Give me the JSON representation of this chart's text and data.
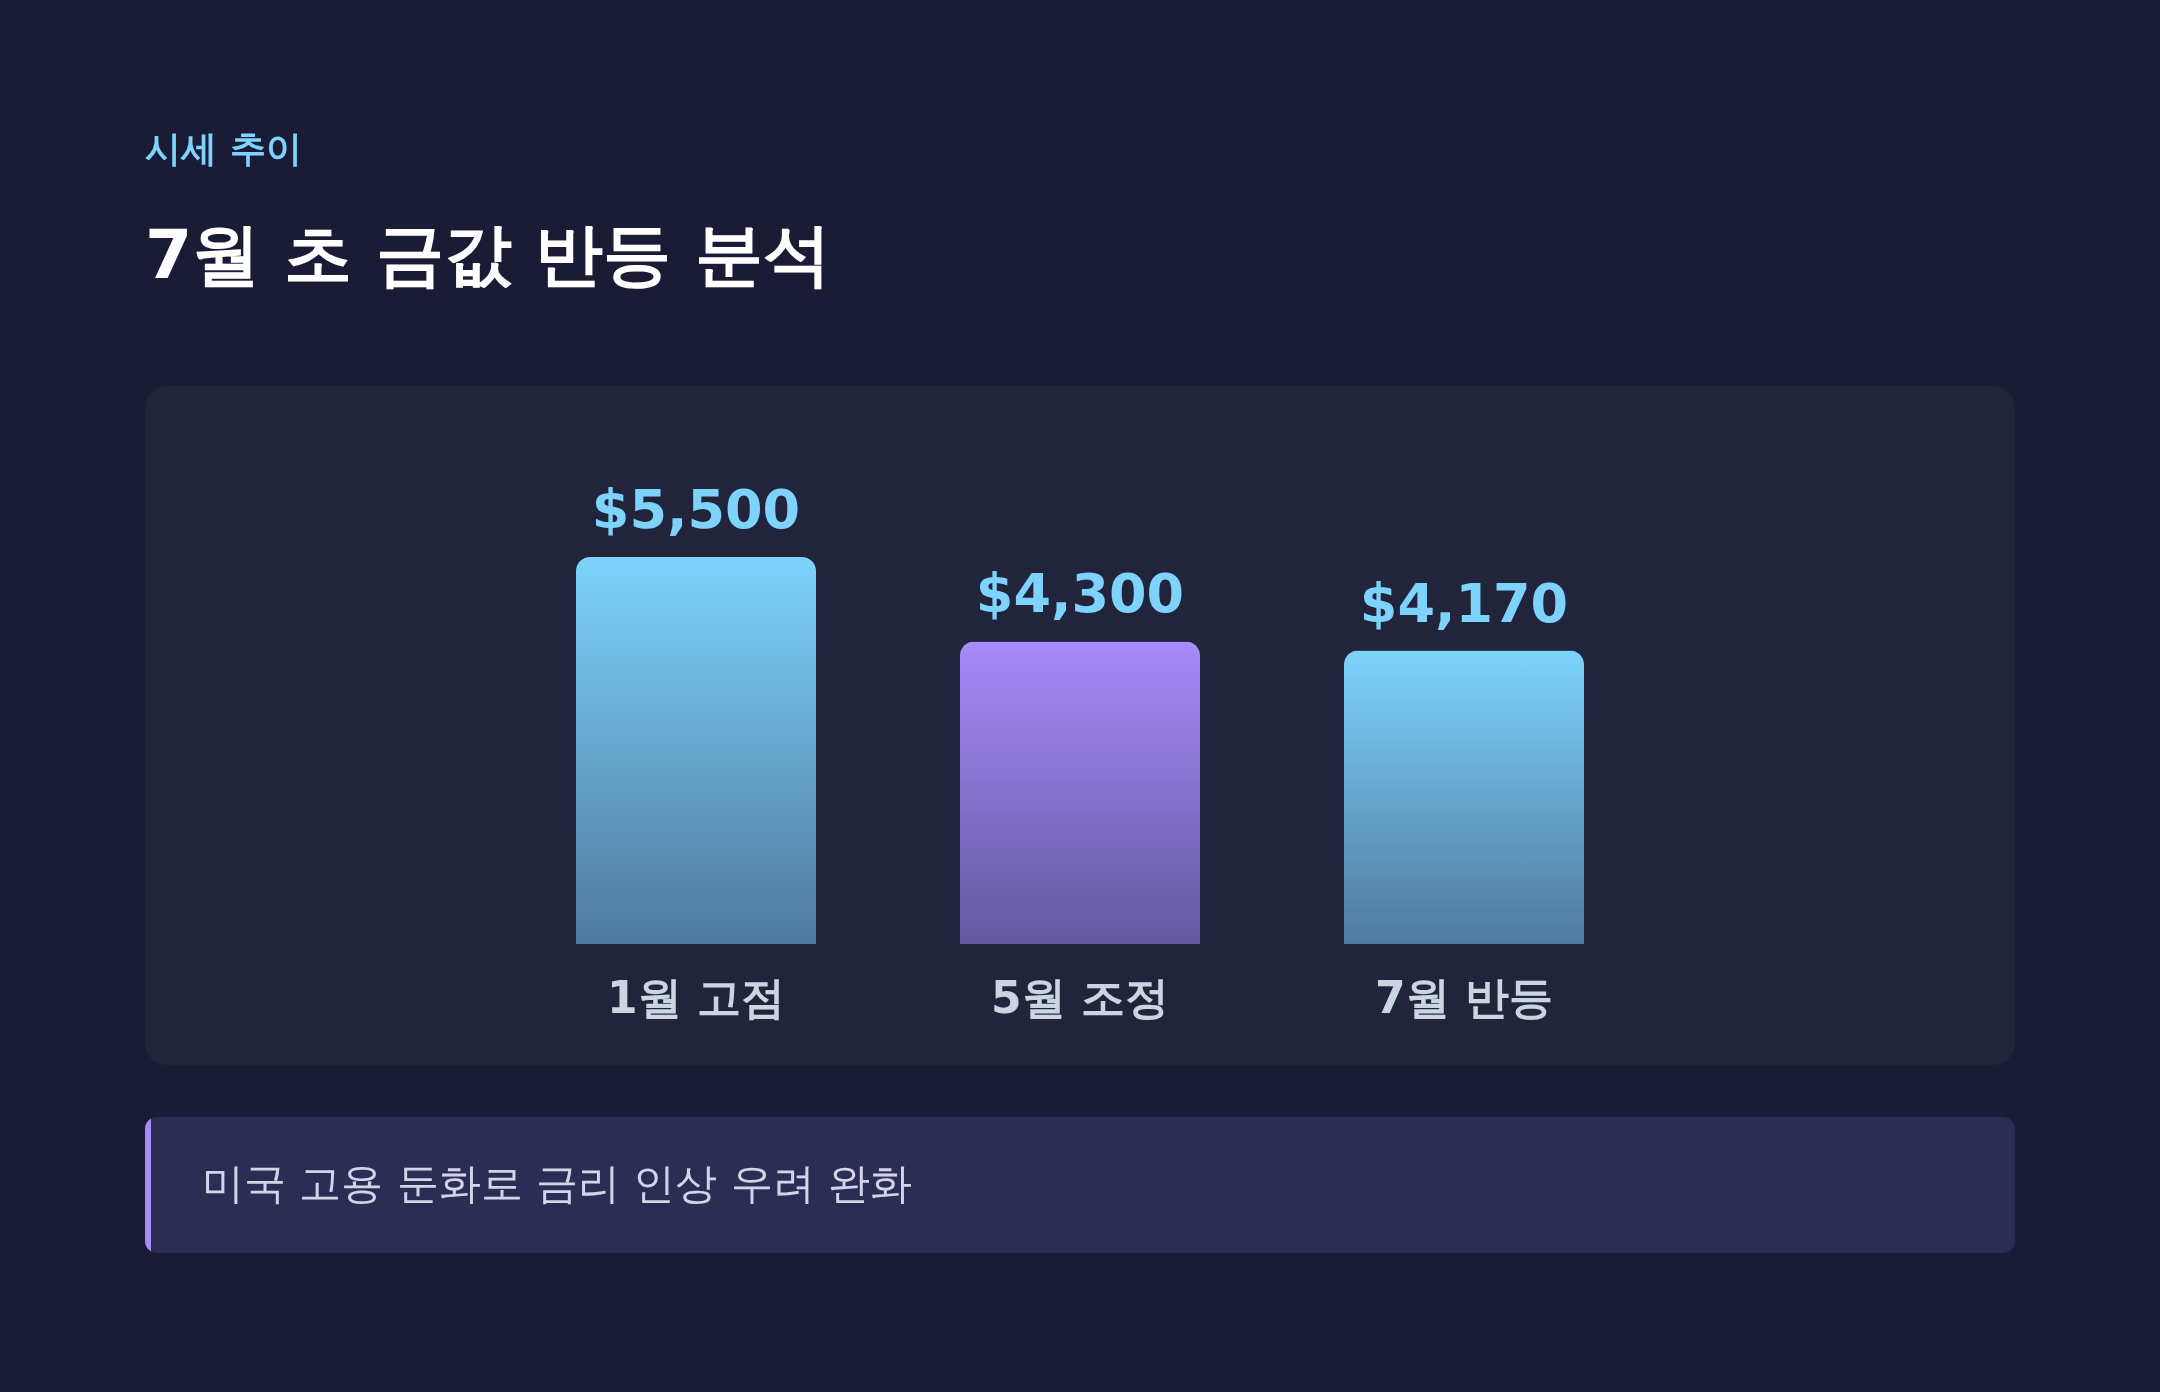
{
  "chart_data": {
    "type": "bar",
    "subtitle": "시세 추이",
    "title": "7월 초 금값 반등 분석",
    "categories": [
      "1월 고점",
      "5월 조정",
      "7월 반등"
    ],
    "values": [
      5500,
      4300,
      4170
    ],
    "colors": [
      "#7dd3fc",
      "#a78bfa",
      "#7dd3fc"
    ],
    "value_labels": [
      "$5,500",
      "$4,300",
      "$4,170"
    ],
    "annotations": [
      "미국 고용 둔화로 금리 인상 우려 완화"
    ]
  }
}
